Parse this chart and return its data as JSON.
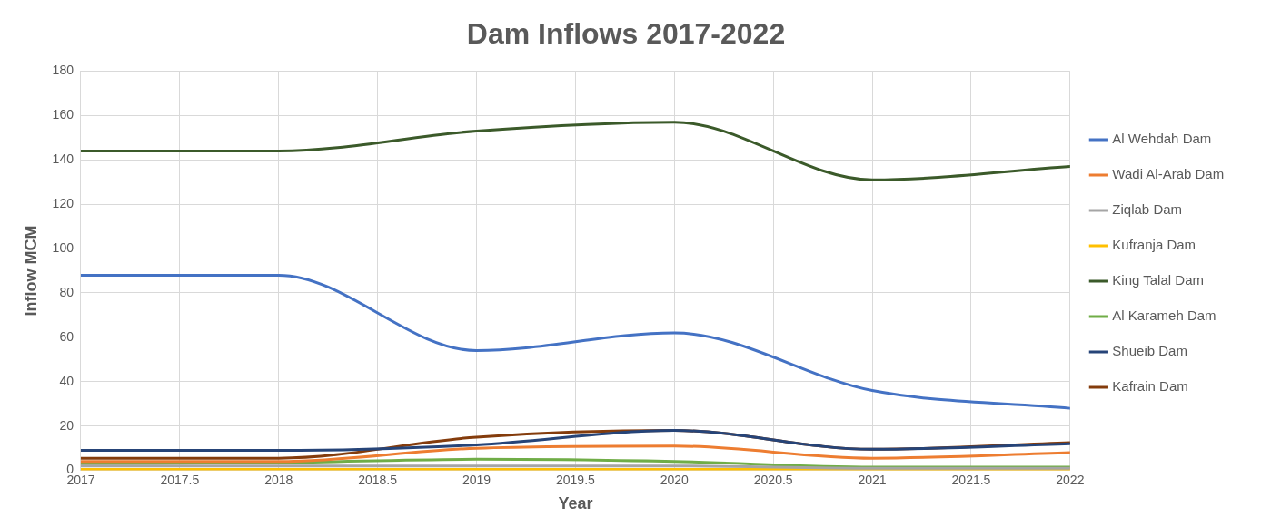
{
  "chart_data": {
    "type": "line",
    "title": "Dam Inflows 2017-2022",
    "xlabel": "Year",
    "ylabel": "Inflow MCM",
    "x": [
      2017,
      2018,
      2019,
      2020,
      2021,
      2022
    ],
    "xlim": [
      2017,
      2022
    ],
    "xticks": [
      2017,
      2017.5,
      2018,
      2018.5,
      2019,
      2019.5,
      2020,
      2020.5,
      2021,
      2021.5,
      2022
    ],
    "ylim": [
      0,
      180
    ],
    "yticks": [
      0,
      20,
      40,
      60,
      80,
      100,
      120,
      140,
      160,
      180
    ],
    "grid": true,
    "legend": "right",
    "marker": "none",
    "line_style": "solid",
    "series": [
      {
        "name": "Al Wehdah Dam",
        "color": "#4472c4",
        "values": [
          88,
          88,
          54,
          62,
          36,
          28
        ]
      },
      {
        "name": "Wadi Al-Arab Dam",
        "color": "#ed7d31",
        "values": [
          4,
          4,
          10,
          11,
          5.5,
          8
        ]
      },
      {
        "name": "Ziqlab Dam",
        "color": "#a5a5a5",
        "values": [
          2,
          2,
          2,
          2,
          1,
          1
        ]
      },
      {
        "name": "Kufranja Dam",
        "color": "#ffc000",
        "values": [
          0.5,
          0.5,
          0.5,
          0.5,
          0.5,
          0.5
        ]
      },
      {
        "name": "King Talal Dam",
        "color": "#3b5a2a",
        "values": [
          144,
          144,
          153,
          157,
          131,
          137
        ]
      },
      {
        "name": "Al Karameh Dam",
        "color": "#70ad47",
        "values": [
          3,
          3.5,
          5,
          4,
          1.5,
          1.5
        ]
      },
      {
        "name": "Shueib Dam",
        "color": "#264478",
        "values": [
          9,
          9,
          11.5,
          18,
          9.5,
          12
        ]
      },
      {
        "name": "Kafrain Dam",
        "color": "#843c0c",
        "values": [
          5.5,
          5.5,
          15,
          18,
          9.5,
          12.5
        ]
      }
    ]
  }
}
